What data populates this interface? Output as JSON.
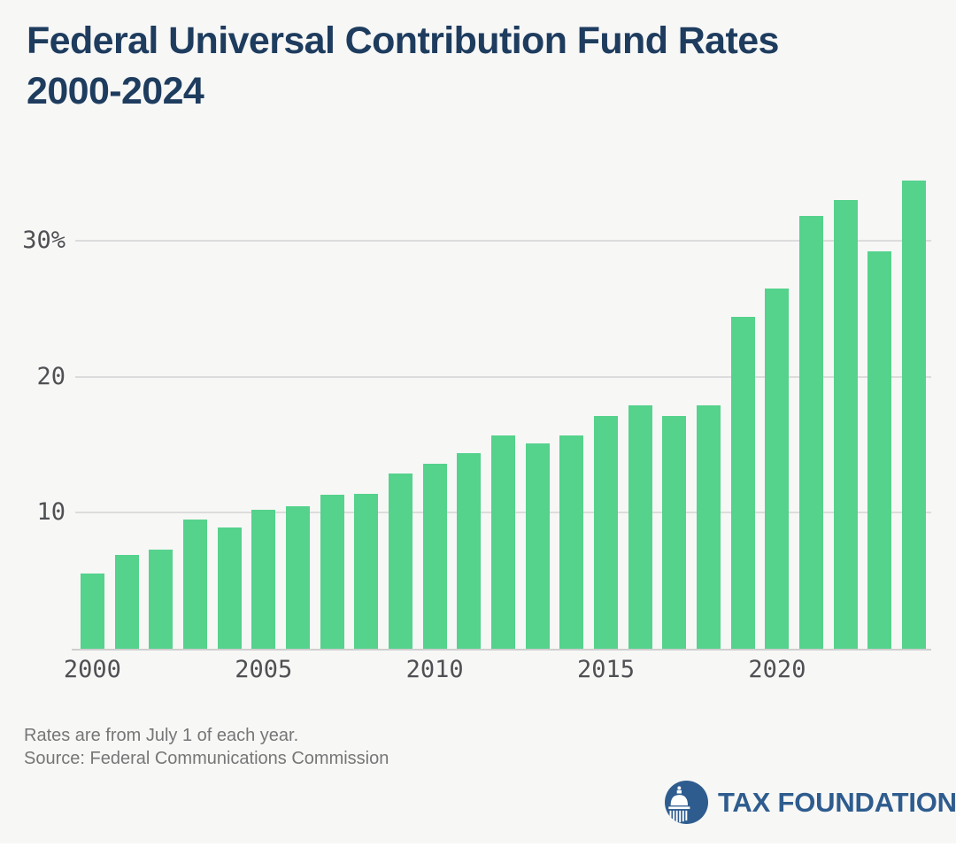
{
  "title": {
    "line1": "Federal Universal Contribution Fund Rates",
    "line2": "2000-2024"
  },
  "notes": {
    "line1": "Rates are from July 1 of each year.",
    "line2": "Source: Federal Communications Commission"
  },
  "logo": {
    "text": "TAX FOUNDATION",
    "icon": "capitol-dome-icon"
  },
  "colors": {
    "background": "#f7f7f6",
    "bar": "#55d28c",
    "title_navy": "#1e3c5e",
    "tick_text": "#4f5053",
    "gridline": "#dcdcdc",
    "axis_line": "#cfcfcf",
    "note_text": "#767676",
    "logo_blue": "#2e5c8e"
  },
  "chart_data": {
    "type": "bar",
    "title": "Federal Universal Contribution Fund Rates 2000-2024",
    "xlabel": "",
    "ylabel": "",
    "categories": [
      2000,
      2001,
      2002,
      2003,
      2004,
      2005,
      2006,
      2007,
      2008,
      2009,
      2010,
      2011,
      2012,
      2013,
      2014,
      2015,
      2016,
      2017,
      2018,
      2019,
      2020,
      2021,
      2022,
      2023,
      2024
    ],
    "values": [
      5.5,
      6.9,
      7.3,
      9.5,
      8.9,
      10.2,
      10.5,
      11.3,
      11.4,
      12.9,
      13.6,
      14.4,
      15.7,
      15.1,
      15.7,
      17.1,
      17.9,
      17.1,
      17.9,
      24.4,
      26.5,
      31.8,
      33.0,
      29.2,
      34.4
    ],
    "unit": "%",
    "ylim": [
      0,
      35
    ],
    "yticks": [
      {
        "value": 10,
        "label": "10"
      },
      {
        "value": 20,
        "label": "20"
      },
      {
        "value": 30,
        "label": "30%"
      }
    ],
    "xticks": [
      {
        "value": 2000,
        "label": "2000"
      },
      {
        "value": 2005,
        "label": "2005"
      },
      {
        "value": 2010,
        "label": "2010"
      },
      {
        "value": 2015,
        "label": "2015"
      },
      {
        "value": 2020,
        "label": "2020"
      }
    ],
    "grid": true,
    "legend": false
  }
}
